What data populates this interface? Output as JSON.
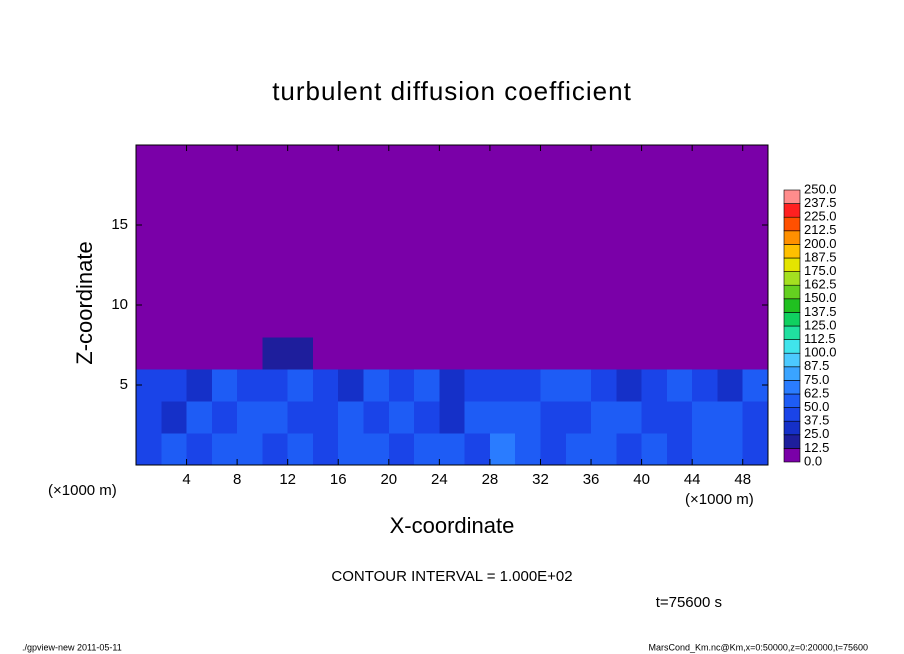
{
  "chart_data": {
    "type": "heatmap",
    "title": "turbulent diffusion coefficient",
    "x_label": "X-coordinate",
    "y_label": "Z-coordinate",
    "x_unit": "(×1000 m)",
    "contour_note": "CONTOUR INTERVAL = 1.000E+02",
    "time_note": "t=75600 s",
    "footer_left": "./gpview-new  2011-05-11",
    "footer_right": "MarsCond_Km.nc@Km,x=0:50000,z=0:20000,t=75600",
    "xlim": [
      0,
      50
    ],
    "ylim": [
      0,
      20
    ],
    "xticks": [
      4,
      8,
      12,
      16,
      20,
      24,
      28,
      32,
      36,
      40,
      44,
      48
    ],
    "yticks": [
      5,
      10,
      15
    ],
    "x": [
      1,
      3,
      5,
      7,
      9,
      11,
      13,
      15,
      17,
      19,
      21,
      23,
      25,
      27,
      29,
      31,
      33,
      35,
      37,
      39,
      41,
      43,
      45,
      47,
      49
    ],
    "z": [
      1,
      3,
      5,
      7,
      9,
      11,
      13,
      15,
      17,
      19
    ],
    "values": [
      [
        45,
        55,
        40,
        60,
        50,
        45,
        55,
        40,
        50,
        60,
        45,
        50,
        55,
        40,
        65,
        50,
        45,
        55,
        50,
        40,
        60,
        45,
        50,
        55,
        45
      ],
      [
        40,
        35,
        55,
        45,
        50,
        60,
        40,
        45,
        55,
        40,
        50,
        45,
        35,
        55,
        50,
        60,
        45,
        40,
        50,
        55,
        45,
        40,
        55,
        50,
        45
      ],
      [
        45,
        40,
        35,
        50,
        45,
        40,
        50,
        45,
        35,
        50,
        40,
        55,
        30,
        45,
        40,
        45,
        55,
        50,
        40,
        35,
        45,
        50,
        40,
        35,
        50
      ],
      [
        0,
        0,
        0,
        0,
        10,
        15,
        15,
        10,
        0,
        0,
        0,
        0,
        0,
        0,
        0,
        0,
        0,
        0,
        0,
        0,
        0,
        0,
        0,
        0,
        0
      ],
      [
        0,
        0,
        0,
        0,
        0,
        0,
        0,
        0,
        0,
        0,
        0,
        0,
        0,
        0,
        0,
        0,
        0,
        0,
        0,
        0,
        0,
        0,
        0,
        0,
        0
      ],
      [
        0,
        0,
        0,
        0,
        0,
        0,
        0,
        0,
        0,
        0,
        0,
        0,
        0,
        0,
        0,
        0,
        0,
        0,
        0,
        0,
        0,
        0,
        0,
        0,
        0
      ],
      [
        0,
        0,
        0,
        0,
        0,
        0,
        0,
        0,
        0,
        0,
        0,
        0,
        0,
        0,
        0,
        0,
        0,
        0,
        0,
        0,
        0,
        0,
        0,
        0,
        0
      ],
      [
        0,
        0,
        0,
        0,
        0,
        0,
        0,
        0,
        0,
        0,
        0,
        0,
        0,
        0,
        0,
        0,
        0,
        0,
        0,
        0,
        0,
        0,
        0,
        0,
        0
      ],
      [
        0,
        0,
        0,
        0,
        0,
        0,
        0,
        0,
        0,
        0,
        0,
        0,
        0,
        0,
        0,
        0,
        0,
        0,
        0,
        0,
        0,
        0,
        0,
        0,
        0
      ],
      [
        0,
        0,
        0,
        0,
        0,
        0,
        0,
        0,
        0,
        0,
        0,
        0,
        0,
        0,
        0,
        0,
        0,
        0,
        0,
        0,
        0,
        0,
        0,
        0,
        0
      ]
    ],
    "levels": [
      {
        "value": 0,
        "label": "0.0"
      },
      {
        "value": 12.5,
        "label": "12.5"
      },
      {
        "value": 25,
        "label": "25.0"
      },
      {
        "value": 37.5,
        "label": "37.5"
      },
      {
        "value": 50,
        "label": "50.0"
      },
      {
        "value": 62.5,
        "label": "62.5"
      },
      {
        "value": 75,
        "label": "75.0"
      },
      {
        "value": 87.5,
        "label": "87.5"
      },
      {
        "value": 100,
        "label": "100.0"
      },
      {
        "value": 112.5,
        "label": "112.5"
      },
      {
        "value": 125,
        "label": "125.0"
      },
      {
        "value": 137.5,
        "label": "137.5"
      },
      {
        "value": 150,
        "label": "150.0"
      },
      {
        "value": 162.5,
        "label": "162.5"
      },
      {
        "value": 175,
        "label": "175.0"
      },
      {
        "value": 187.5,
        "label": "187.5"
      },
      {
        "value": 200,
        "label": "200.0"
      },
      {
        "value": 212.5,
        "label": "212.5"
      },
      {
        "value": 225,
        "label": "225.0"
      },
      {
        "value": 237.5,
        "label": "237.5"
      },
      {
        "value": 250,
        "label": "250.0"
      }
    ],
    "colors": [
      "#7a00a8",
      "#1e1e9c",
      "#1530c8",
      "#1a44e8",
      "#1e5cf5",
      "#2a7cff",
      "#3aa4ff",
      "#4ccaff",
      "#40e4ec",
      "#20e0a0",
      "#10d060",
      "#20c020",
      "#64d020",
      "#a4e020",
      "#e4e400",
      "#ffc000",
      "#ff9000",
      "#ff5000",
      "#ff2020",
      "#ff8c8c"
    ]
  }
}
